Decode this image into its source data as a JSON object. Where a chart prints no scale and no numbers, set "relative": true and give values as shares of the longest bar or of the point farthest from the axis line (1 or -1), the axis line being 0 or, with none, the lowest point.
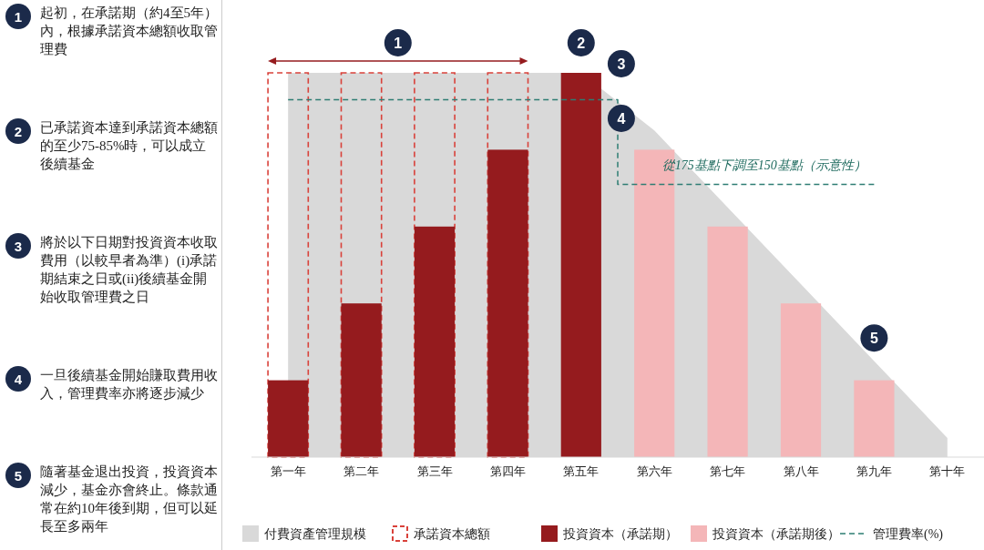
{
  "chart_data": [
    {
      "type": "other",
      "categories": [
        "1",
        "2",
        "3",
        "4",
        "5"
      ],
      "annotations": [
        "起初，在承諾期（約4至5年）內，根據承諾資本總額收取管理費",
        "已承諾資本達到承諾資本總額的至少75-85%時，可以成立後續基金",
        "將於以下日期對投資資本收取費用（以較早者為準）(i)承諾期結束之日或(ii)後續基金開始收取管理費之日",
        "一旦後續基金開始賺取費用收入，管理費率亦將逐步減少",
        "隨著基金退出投資，投資資本減少，基金亦會終止。條款通常在約10年後到期，但可以延長至多兩年"
      ]
    },
    {
      "type": "bar",
      "relative": true,
      "legend": "bottom",
      "categories": [
        "第一年",
        "第二年",
        "第三年",
        "第四年",
        "第五年",
        "第六年",
        "第七年",
        "第八年",
        "第九年",
        "第十年"
      ],
      "series": [
        {
          "name": "付費資產管理規模",
          "type": "area",
          "color": "#d9d9d9",
          "values": [
            1,
            1,
            1,
            1,
            1,
            0.85,
            0.65,
            0.45,
            0.25,
            0.05
          ]
        },
        {
          "name": "承諾資本總額",
          "type": "bar",
          "color": "#d9413a",
          "line_style": "dashed",
          "values": [
            1,
            1,
            1,
            1,
            null,
            null,
            null,
            null,
            null,
            null
          ]
        },
        {
          "name": "投資資本（承諾期）",
          "type": "bar",
          "color": "#951b1e",
          "values": [
            0.2,
            0.4,
            0.6,
            0.8,
            1,
            null,
            null,
            null,
            null,
            null
          ]
        },
        {
          "name": "投資資本（承諾期後）",
          "type": "bar",
          "color": "#f4b6b8",
          "values": [
            null,
            null,
            null,
            null,
            null,
            0.8,
            0.6,
            0.4,
            0.2,
            null
          ]
        },
        {
          "name": "管理費率(%)",
          "type": "step",
          "color": "#2e7d73",
          "line_style": "dashed",
          "values": [
            0.93,
            0.93,
            0.93,
            0.93,
            0.93,
            0.71,
            0.71,
            0.71,
            0.71,
            null
          ]
        }
      ],
      "annotations": [
        "1",
        "2",
        "3",
        "4",
        {
          "text": "5",
          "x": "第九年",
          "y": 0.31
        },
        "從175基點下調至150基點（示意性）"
      ]
    }
  ]
}
